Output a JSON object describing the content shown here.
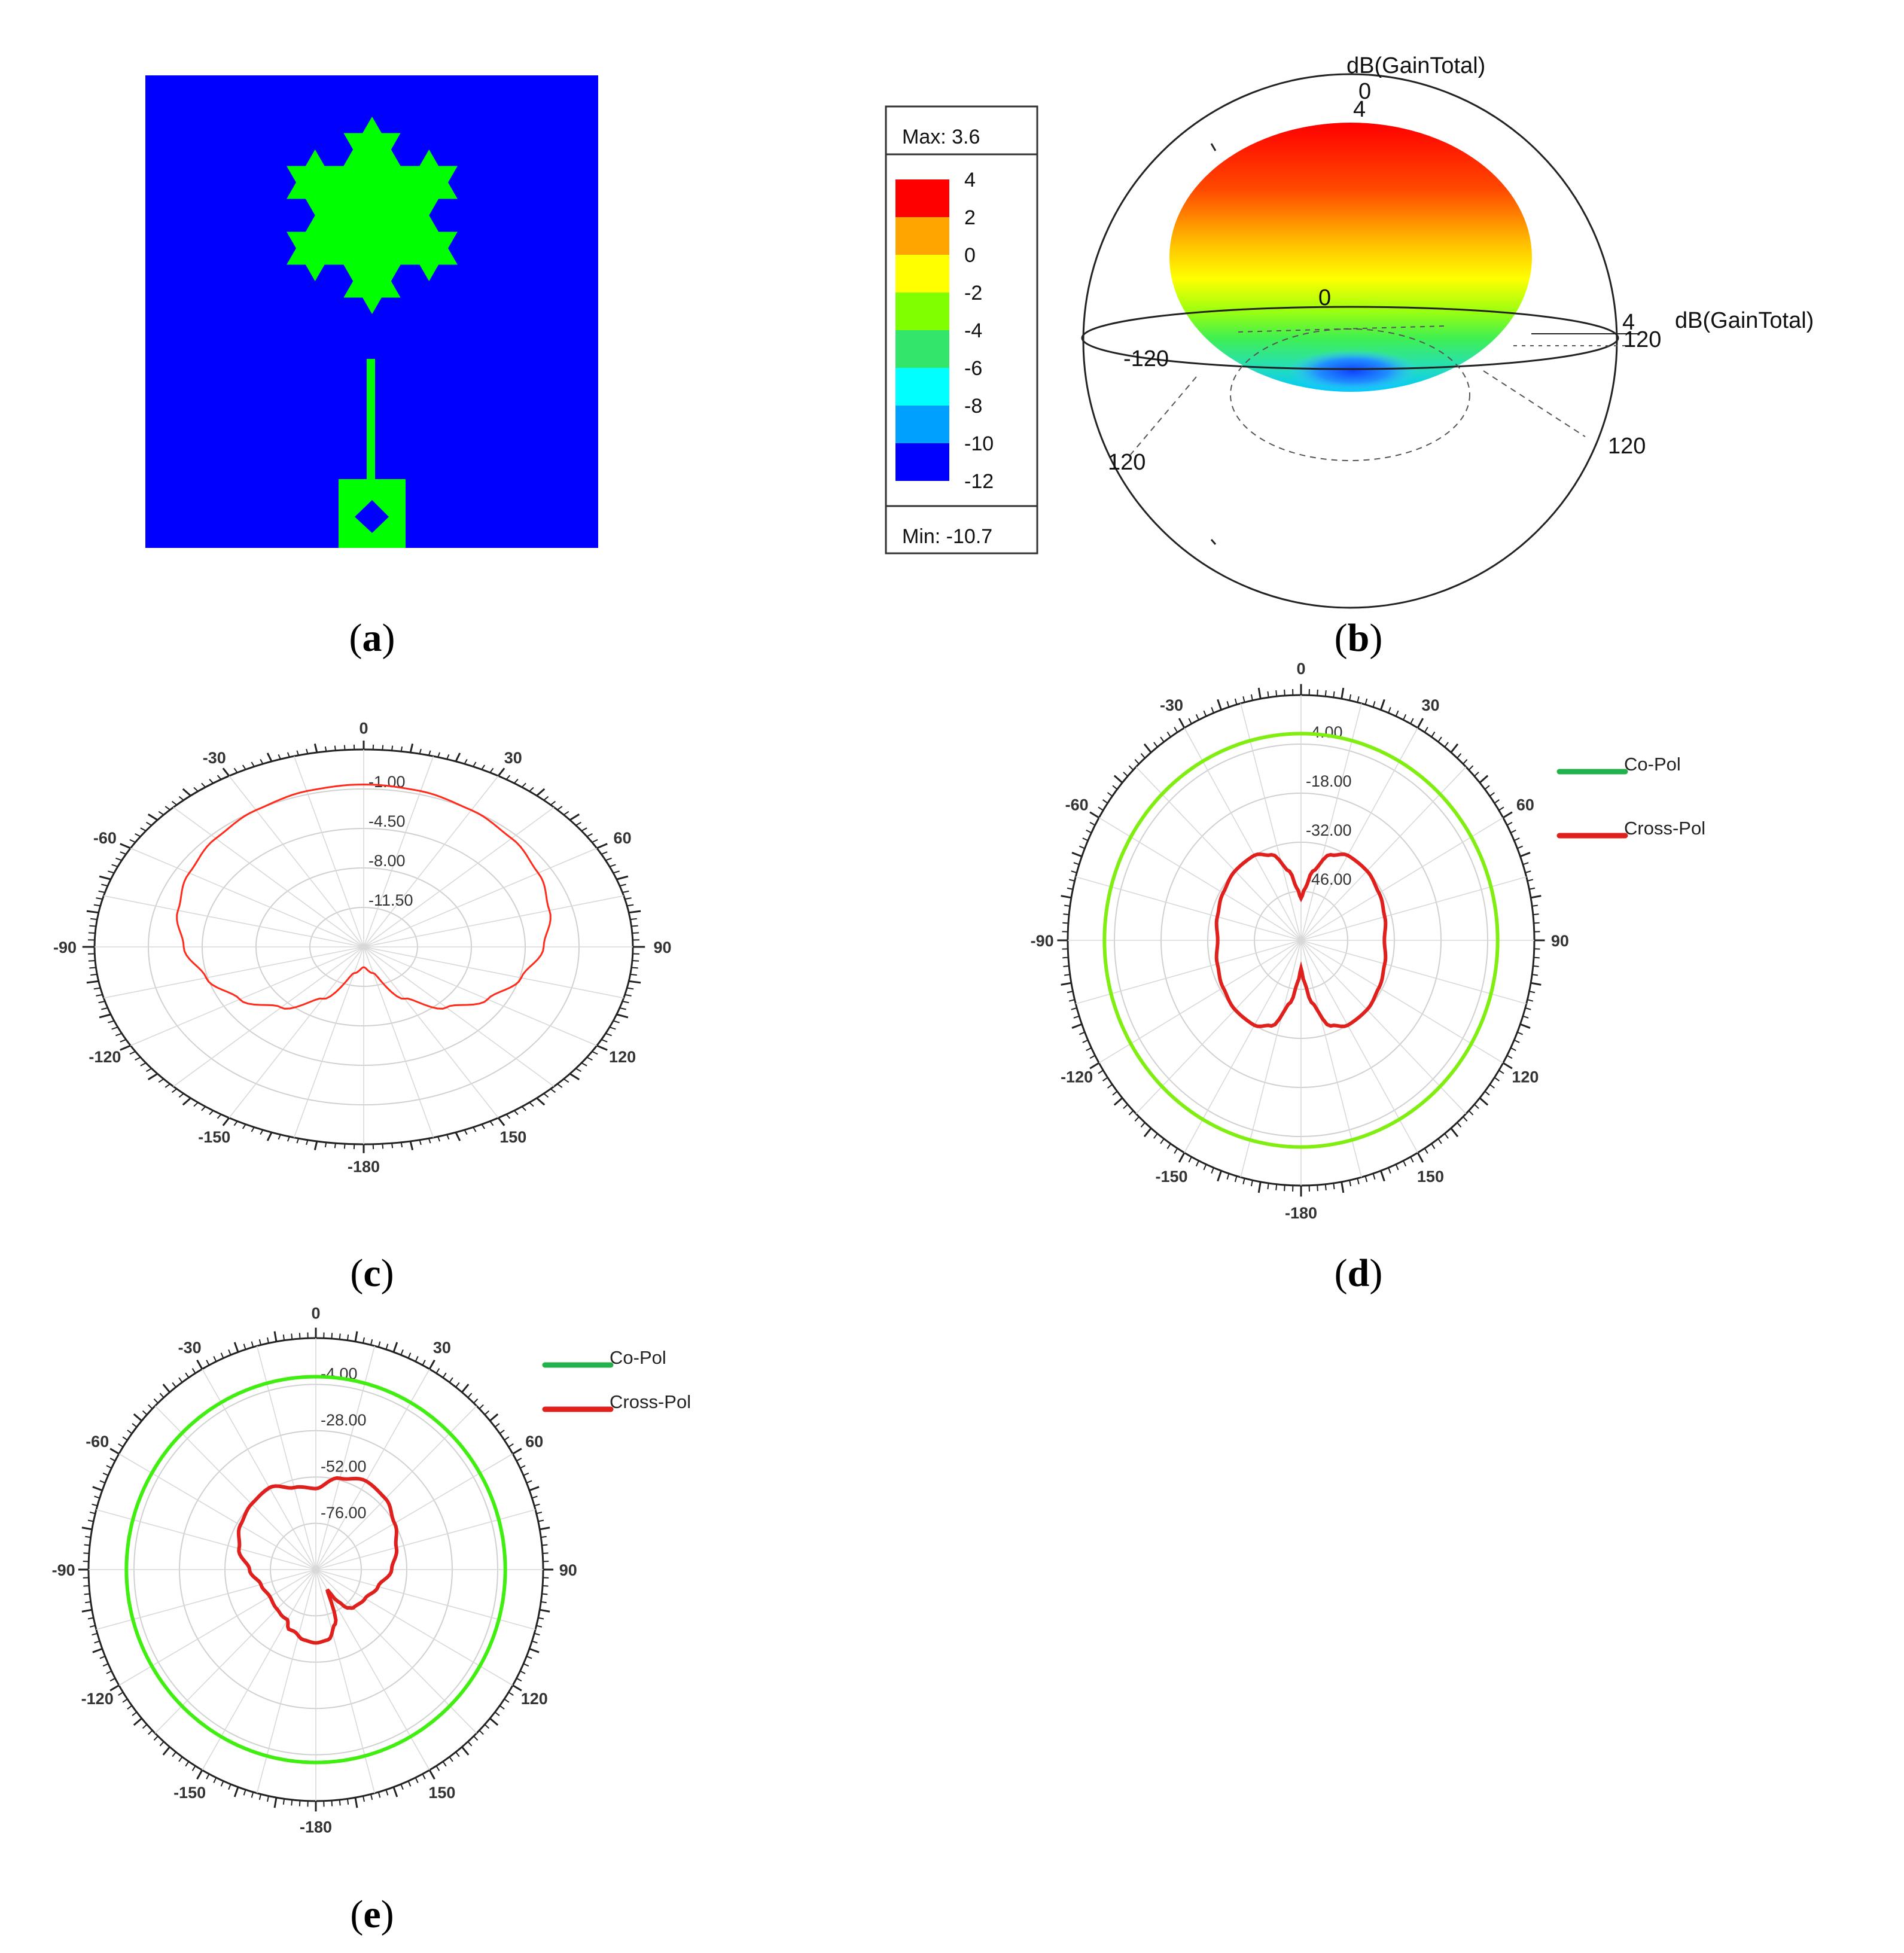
{
  "panels": {
    "a": {
      "caption": "a"
    },
    "b": {
      "caption": "b",
      "colorbar": {
        "max_label": "Max: 3.6",
        "min_label": "Min: -10.7",
        "ticks": [
          "4",
          "2",
          "0",
          "-2",
          "-4",
          "-6",
          "-8",
          "-10",
          "-12"
        ],
        "colors": [
          "#ff0000",
          "#ffa500",
          "#ffff00",
          "#80ff00",
          "#33e66a",
          "#00ffff",
          "#00a0ff",
          "#0000ff"
        ]
      },
      "annotations": {
        "top_title": "dB(GainTotal)",
        "top_zero": "0",
        "top_four": "4",
        "mid_zero": "0",
        "left_120": "-120",
        "right_four": "4",
        "right_120": "120",
        "right_title": "dB(GainTotal)",
        "lower_left_120": "120",
        "lower_right_120": "120"
      }
    },
    "c": {
      "caption": "c"
    },
    "d": {
      "caption": "d"
    },
    "e": {
      "caption": "e"
    }
  },
  "chart_data": [
    {
      "panel": "b",
      "type": "heatmap",
      "colorbar_ticks": [
        4,
        2,
        0,
        -2,
        -4,
        -6,
        -8,
        -10,
        -12
      ],
      "max": 3.6,
      "min": -10.7
    },
    {
      "panel": "c",
      "type": "polar",
      "angle_ticks": [
        "0",
        "30",
        "60",
        "90",
        "120",
        "150",
        "-180",
        "-150",
        "-120",
        "-90",
        "-60",
        "-30"
      ],
      "radial_ticks": [
        "-1.00",
        "-4.50",
        "-8.00",
        "-11.50"
      ],
      "rlim": [
        -15,
        2.5
      ],
      "series": [
        {
          "color": "#ff2a1a",
          "theta": [
            0,
            15,
            30,
            45,
            60,
            75,
            90,
            105,
            120,
            135,
            150,
            165,
            180,
            -165,
            -150,
            -135,
            -120,
            -105,
            -90,
            -75,
            -60,
            -45,
            -30,
            -15
          ],
          "r": [
            -0.6,
            -0.7,
            -1.0,
            -1.4,
            -1.9,
            -2.5,
            -3.3,
            -4.4,
            -5.7,
            -7.4,
            -9.7,
            -12.6,
            -13.2,
            -12.6,
            -9.7,
            -7.4,
            -5.7,
            -4.4,
            -3.3,
            -2.5,
            -1.9,
            -1.4,
            -1.0,
            -0.7
          ]
        }
      ]
    },
    {
      "panel": "d",
      "type": "polar",
      "angle_ticks": [
        "0",
        "30",
        "60",
        "90",
        "120",
        "150",
        "-180",
        "-150",
        "-120",
        "-90",
        "-60",
        "-30"
      ],
      "radial_ticks": [
        "-4.00",
        "-18.00",
        "-32.00",
        "-46.00"
      ],
      "rlim": [
        -60,
        10
      ],
      "legend_position": "right",
      "series": [
        {
          "name": "Co-Pol",
          "color": "#80ee10",
          "legend_color": "#22b24c",
          "theta": [
            0,
            30,
            60,
            90,
            120,
            150,
            180,
            -150,
            -120,
            -90,
            -60,
            -30
          ],
          "r": [
            -1.0,
            -1.0,
            -1.0,
            -1.0,
            -1.0,
            -1.0,
            -1.0,
            -1.0,
            -1.0,
            -1.0,
            -1.0,
            -1.0
          ]
        },
        {
          "name": "Cross-Pol",
          "color": "#e0201c",
          "legend_color": "#e0201c",
          "theta": [
            0,
            5,
            10,
            20,
            30,
            45,
            60,
            75,
            90,
            105,
            120,
            135,
            150,
            160,
            170,
            175,
            180,
            -175,
            -170,
            -160,
            -150,
            -135,
            -120,
            -105,
            -90,
            -75,
            -60,
            -45,
            -30,
            -20,
            -10,
            -5
          ],
          "r": [
            -48,
            -45,
            -40,
            -34,
            -32,
            -32,
            -33,
            -34,
            -35,
            -34,
            -33,
            -32,
            -32,
            -34,
            -42,
            -48,
            -52,
            -48,
            -42,
            -34,
            -32,
            -32,
            -33,
            -34,
            -35,
            -34,
            -33,
            -32,
            -32,
            -34,
            -40,
            -45
          ]
        }
      ]
    },
    {
      "panel": "e",
      "type": "polar",
      "angle_ticks": [
        "0",
        "30",
        "60",
        "90",
        "120",
        "150",
        "-180",
        "-150",
        "-120",
        "-90",
        "-60",
        "-30"
      ],
      "radial_ticks": [
        "-4.00",
        "-28.00",
        "-52.00",
        "-76.00"
      ],
      "rlim": [
        -100,
        20
      ],
      "legend_position": "top-right",
      "series": [
        {
          "name": "Co-Pol",
          "color": "#40ee10",
          "legend_color": "#22b24c",
          "theta": [
            0,
            30,
            60,
            90,
            120,
            150,
            180,
            -150,
            -120,
            -90,
            -60,
            -30
          ],
          "r": [
            0.0,
            0.0,
            0.0,
            0.0,
            0.0,
            0.0,
            0.0,
            0.0,
            0.0,
            0.0,
            0.0,
            0.0
          ]
        },
        {
          "name": "Cross-Pol",
          "color": "#e0201c",
          "legend_color": "#e0201c",
          "theta": [
            0,
            15,
            30,
            45,
            60,
            75,
            90,
            105,
            120,
            135,
            140,
            145,
            150,
            160,
            170,
            180,
            -170,
            -160,
            -155,
            -150,
            -145,
            -135,
            -120,
            -105,
            -90,
            -75,
            -60,
            -45,
            -30,
            -15
          ],
          "r": [
            -58,
            -51,
            -47,
            -48,
            -52,
            -56,
            -60,
            -66,
            -70,
            -72,
            -74,
            -80,
            -88,
            -70,
            -63,
            -62,
            -63,
            -66,
            -66,
            -70,
            -70,
            -71,
            -72,
            -70,
            -65,
            -58,
            -54,
            -52,
            -51,
            -56
          ]
        }
      ]
    }
  ]
}
